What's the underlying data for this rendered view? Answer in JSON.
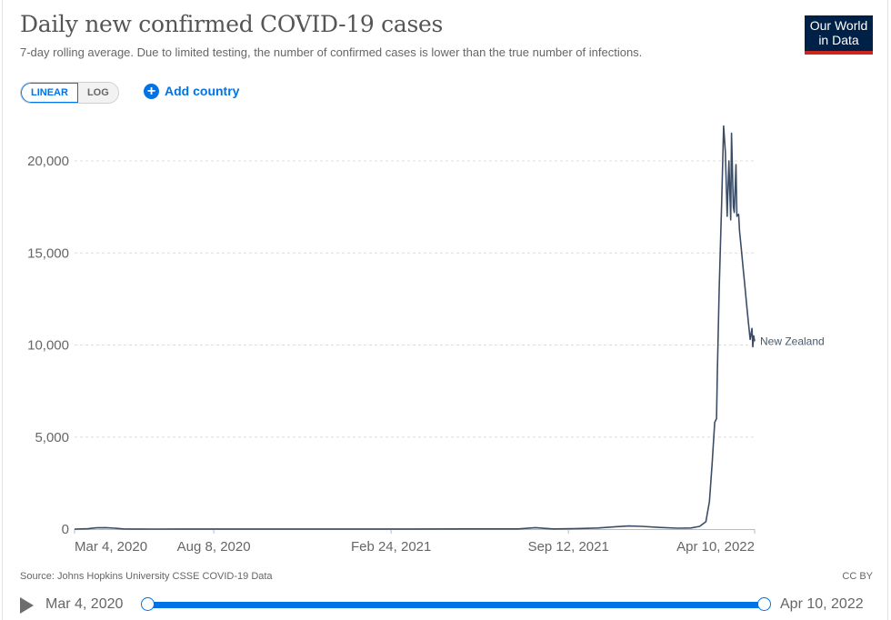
{
  "header": {
    "title": "Daily new confirmed COVID-19 cases",
    "subtitle": "7-day rolling average. Due to limited testing, the number of confirmed cases is lower than the true number of infections.",
    "logo_line1": "Our World",
    "logo_line2": "in Data"
  },
  "controls": {
    "scale_options": [
      "LINEAR",
      "LOG"
    ],
    "scale_selected": "LINEAR",
    "add_country_label": "Add country",
    "add_country_icon": "plus-circle-icon"
  },
  "footer": {
    "source": "Source: Johns Hopkins University CSSE COVID-19 Data",
    "license": "CC BY"
  },
  "timeline": {
    "play_icon": "play-icon",
    "start_label": "Mar 4, 2020",
    "end_label": "Apr 10, 2022",
    "range_start_fraction": 0,
    "range_end_fraction": 1
  },
  "colors": {
    "line": "#3b4d66",
    "accent": "#0073e6",
    "logo_bg": "#002147",
    "logo_bar": "#ce261e"
  },
  "chart_data": {
    "type": "line",
    "title": "Daily new confirmed COVID-19 cases",
    "subtitle": "7-day rolling average",
    "xlabel": "",
    "ylabel": "",
    "x_unit": "days since Mar 4, 2020",
    "x_range": [
      0,
      767
    ],
    "ylim": [
      0,
      20000
    ],
    "y_ticks": [
      0,
      5000,
      10000,
      15000,
      20000
    ],
    "y_tick_labels": [
      "0",
      "5,000",
      "10,000",
      "15,000",
      "20,000"
    ],
    "x_ticks": [
      0,
      157,
      357,
      557,
      767
    ],
    "x_tick_labels": [
      "Mar 4, 2020",
      "Aug 8, 2020",
      "Feb 24, 2021",
      "Sep 12, 2021",
      "Apr 10, 2022"
    ],
    "grid": "horizontal-dashed",
    "legend": "inline-right",
    "series": [
      {
        "name": "New Zealand",
        "x": [
          0,
          15,
          25,
          35,
          45,
          55,
          70,
          90,
          120,
          160,
          200,
          260,
          320,
          380,
          440,
          500,
          520,
          530,
          540,
          560,
          590,
          610,
          625,
          640,
          660,
          680,
          695,
          705,
          712,
          716,
          719,
          722,
          724,
          725,
          727,
          730,
          732,
          734,
          736,
          738,
          740,
          741,
          743,
          744,
          746,
          747,
          749,
          750,
          752,
          754,
          756,
          758,
          760,
          762,
          764,
          765,
          766,
          767
        ],
        "y": [
          0,
          20,
          70,
          80,
          50,
          10,
          5,
          2,
          3,
          5,
          3,
          4,
          3,
          5,
          8,
          10,
          80,
          40,
          10,
          20,
          60,
          130,
          170,
          150,
          90,
          50,
          60,
          150,
          400,
          1500,
          3500,
          5800,
          6000,
          8500,
          13000,
          18000,
          21900,
          20500,
          17000,
          20000,
          16800,
          21500,
          17500,
          17200,
          19800,
          17000,
          17100,
          16200,
          15200,
          14200,
          13200,
          12200,
          11200,
          10300,
          10900,
          9900,
          10500,
          10200
        ]
      }
    ]
  }
}
